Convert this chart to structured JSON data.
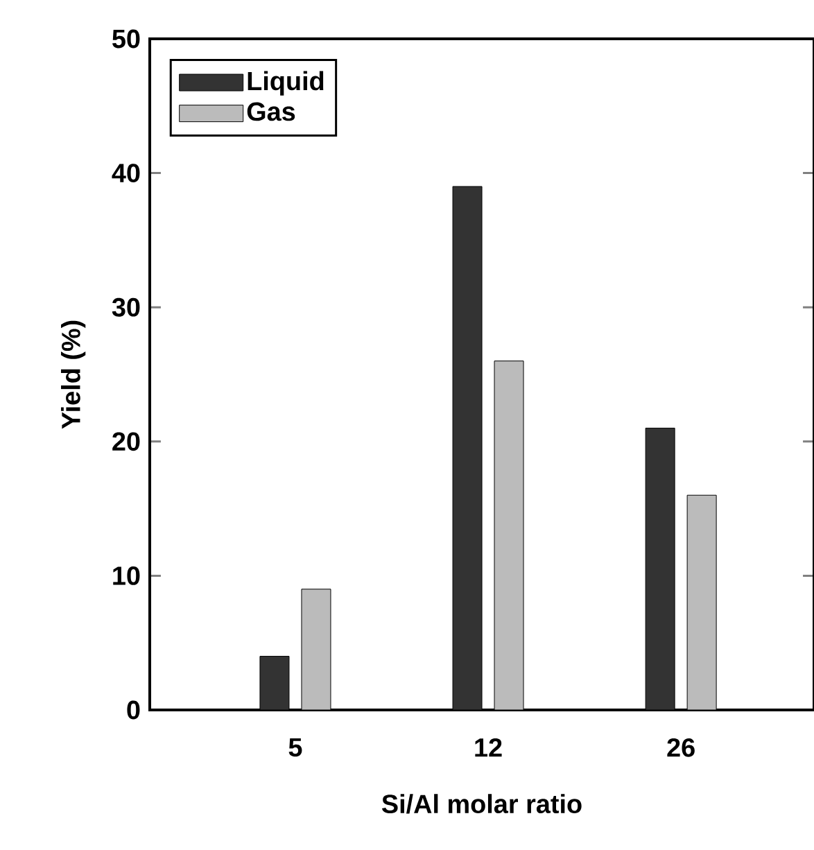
{
  "chart_data": {
    "type": "bar",
    "xlabel": "Si/Al molar ratio",
    "ylabel": "Yield (%)",
    "categories": [
      "5",
      "12",
      "26"
    ],
    "series": [
      {
        "name": "Liquid",
        "color": "#333333",
        "values": [
          4,
          39,
          21
        ]
      },
      {
        "name": "Gas",
        "color": "#bbbbbb",
        "values": [
          9,
          26,
          16
        ]
      }
    ],
    "ylim": [
      0,
      50
    ],
    "yticks": [
      0,
      10,
      20,
      30,
      40,
      50
    ],
    "legend": "top left"
  }
}
